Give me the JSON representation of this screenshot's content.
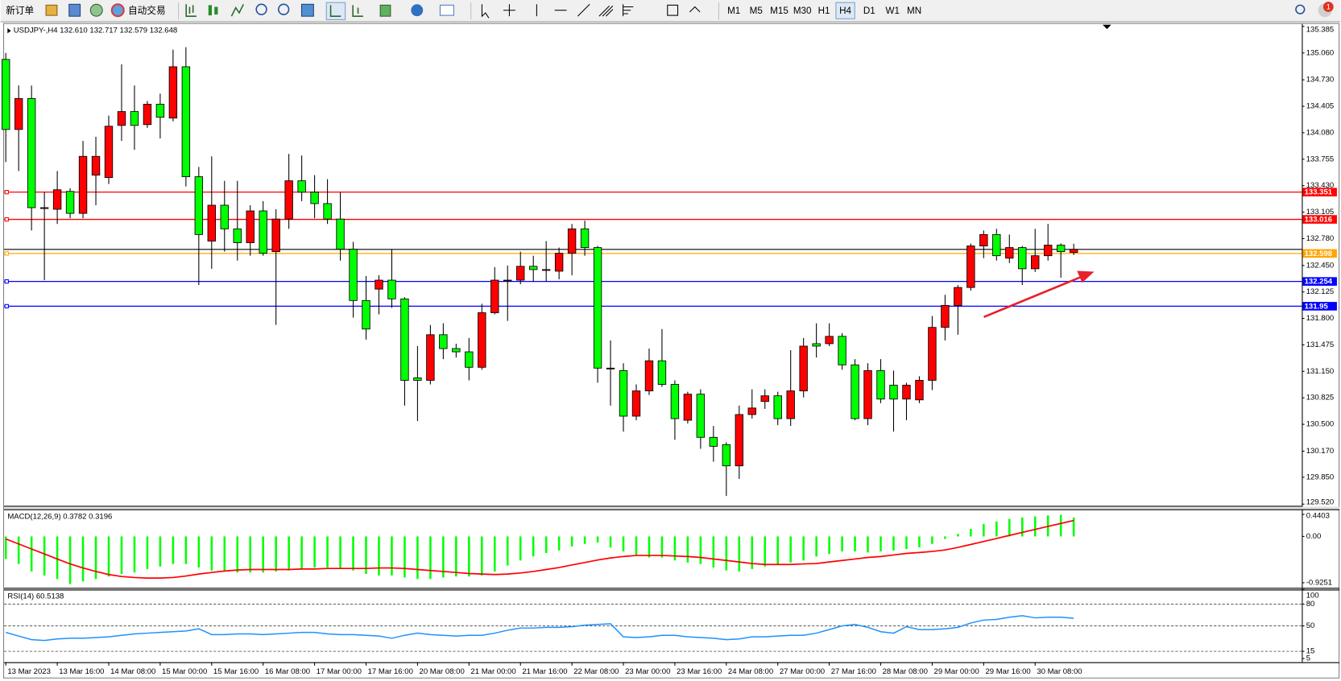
{
  "toolbar": {
    "new_order": "新订单",
    "auto_trade": "自动交易",
    "timeframes": [
      "M1",
      "M5",
      "M15",
      "M30",
      "H1",
      "H4",
      "D1",
      "W1",
      "MN"
    ],
    "notifications": "1"
  },
  "chart_data": [
    {
      "type": "candlestick",
      "title": "USDJPY-,H4  132.610 132.717 132.579 132.648",
      "up_color": "#ff0000",
      "down_color": "#00ff00",
      "categories": [
        "13 Mar 2023",
        null,
        null,
        null,
        "13 Mar 16:00",
        null,
        null,
        null,
        "14 Mar 08:00",
        null,
        null,
        null,
        "15 Mar 00:00",
        null,
        null,
        null,
        "15 Mar 16:00",
        null,
        null,
        null,
        "16 Mar 08:00",
        null,
        null,
        null,
        "17 Mar 00:00",
        null,
        null,
        null,
        "17 Mar 16:00",
        null,
        null,
        null,
        "20 Mar 08:00",
        null,
        null,
        null,
        "21 Mar 00:00",
        null,
        null,
        null,
        "21 Mar 16:00",
        null,
        null,
        null,
        "22 Mar 08:00",
        null,
        null,
        null,
        "23 Mar 00:00",
        null,
        null,
        null,
        "23 Mar 16:00",
        null,
        null,
        null,
        "24 Mar 08:00",
        null,
        null,
        null,
        "27 Mar 00:00",
        null,
        null,
        null,
        "27 Mar 16:00",
        null,
        null,
        null,
        "28 Mar 08:00",
        null,
        null,
        null,
        "29 Mar 00:00",
        null,
        null,
        null,
        "29 Mar 16:00",
        null,
        null,
        null,
        "30 Mar 08:00",
        null,
        null,
        null
      ],
      "ohlc": [
        [
          134.98,
          135.06,
          133.72,
          134.12
        ],
        [
          134.12,
          134.66,
          133.61,
          134.5
        ],
        [
          134.5,
          134.66,
          132.88,
          133.16
        ],
        [
          133.16,
          133.35,
          132.27,
          133.16
        ],
        [
          133.14,
          133.61,
          132.96,
          133.38
        ],
        [
          133.36,
          133.4,
          133.03,
          133.09
        ],
        [
          133.09,
          133.98,
          133.03,
          133.79
        ],
        [
          133.56,
          134.03,
          133.19,
          133.79
        ],
        [
          133.53,
          134.29,
          133.45,
          134.16
        ],
        [
          134.17,
          134.92,
          133.98,
          134.34
        ],
        [
          134.34,
          134.66,
          133.87,
          134.17
        ],
        [
          134.18,
          134.47,
          134.14,
          134.43
        ],
        [
          134.43,
          134.56,
          134.01,
          134.27
        ],
        [
          134.26,
          135.1,
          134.22,
          134.89
        ],
        [
          134.89,
          135.13,
          133.42,
          133.54
        ],
        [
          133.54,
          133.66,
          132.21,
          132.83
        ],
        [
          132.75,
          133.79,
          132.41,
          133.19
        ],
        [
          133.19,
          133.49,
          132.62,
          132.9
        ],
        [
          132.9,
          133.49,
          132.51,
          132.73
        ],
        [
          132.73,
          133.19,
          132.57,
          133.12
        ],
        [
          133.12,
          133.24,
          132.57,
          132.6
        ],
        [
          132.62,
          133.14,
          131.72,
          133.02
        ],
        [
          133.02,
          133.82,
          132.9,
          133.49
        ],
        [
          133.49,
          133.8,
          133.24,
          133.35
        ],
        [
          133.35,
          133.56,
          133.03,
          133.21
        ],
        [
          133.21,
          133.51,
          132.96,
          133.02
        ],
        [
          133.02,
          133.35,
          132.51,
          132.65
        ],
        [
          132.65,
          132.74,
          131.81,
          132.02
        ],
        [
          132.02,
          132.32,
          131.54,
          131.67
        ],
        [
          132.16,
          132.33,
          131.85,
          132.27
        ],
        [
          132.27,
          132.65,
          131.93,
          132.04
        ],
        [
          132.04,
          132.06,
          130.73,
          131.04
        ],
        [
          131.07,
          131.46,
          130.54,
          131.04
        ],
        [
          131.04,
          131.72,
          130.99,
          131.6
        ],
        [
          131.6,
          131.74,
          131.3,
          131.43
        ],
        [
          131.43,
          131.49,
          131.32,
          131.39
        ],
        [
          131.39,
          131.56,
          131.04,
          131.2
        ],
        [
          131.2,
          131.98,
          131.17,
          131.87
        ],
        [
          131.87,
          132.43,
          131.85,
          132.27
        ],
        [
          132.27,
          132.45,
          131.77,
          132.27
        ],
        [
          132.27,
          132.62,
          132.22,
          132.44
        ],
        [
          132.44,
          132.57,
          132.25,
          132.4
        ],
        [
          132.4,
          132.75,
          132.25,
          132.4
        ],
        [
          132.38,
          132.67,
          132.28,
          132.6
        ],
        [
          132.6,
          132.96,
          132.33,
          132.9
        ],
        [
          132.9,
          133.0,
          132.57,
          132.67
        ],
        [
          132.67,
          132.69,
          131.01,
          131.19
        ],
        [
          131.19,
          131.53,
          130.73,
          131.19
        ],
        [
          131.16,
          131.25,
          130.41,
          130.6
        ],
        [
          130.6,
          130.99,
          130.55,
          130.91
        ],
        [
          130.91,
          131.43,
          130.86,
          131.28
        ],
        [
          131.28,
          131.67,
          130.96,
          130.99
        ],
        [
          130.99,
          131.04,
          130.31,
          130.57
        ],
        [
          130.55,
          130.9,
          130.51,
          130.87
        ],
        [
          130.87,
          130.93,
          130.2,
          130.34
        ],
        [
          130.34,
          130.48,
          130.04,
          130.23
        ],
        [
          130.25,
          130.28,
          129.62,
          129.99
        ],
        [
          129.99,
          130.73,
          129.83,
          130.62
        ],
        [
          130.62,
          130.93,
          130.57,
          130.7
        ],
        [
          130.78,
          130.93,
          130.69,
          130.85
        ],
        [
          130.85,
          130.9,
          130.49,
          130.57
        ],
        [
          130.57,
          131.41,
          130.48,
          130.91
        ],
        [
          130.91,
          131.56,
          130.83,
          131.46
        ],
        [
          131.49,
          131.74,
          131.32,
          131.46
        ],
        [
          131.49,
          131.74,
          131.46,
          131.58
        ],
        [
          131.58,
          131.62,
          131.17,
          131.23
        ],
        [
          131.23,
          131.3,
          130.55,
          130.57
        ],
        [
          130.57,
          131.25,
          130.49,
          131.16
        ],
        [
          131.16,
          131.3,
          130.76,
          130.81
        ],
        [
          130.98,
          131.16,
          130.41,
          130.81
        ],
        [
          130.81,
          131.01,
          130.55,
          130.98
        ],
        [
          130.8,
          131.09,
          130.76,
          131.04
        ],
        [
          131.04,
          131.83,
          130.92,
          131.69
        ],
        [
          131.69,
          132.09,
          131.53,
          131.96
        ],
        [
          131.96,
          132.21,
          131.6,
          132.18
        ],
        [
          132.18,
          132.72,
          132.14,
          132.69
        ],
        [
          132.69,
          132.88,
          132.54,
          132.83
        ],
        [
          132.83,
          132.9,
          132.51,
          132.57
        ],
        [
          132.54,
          132.83,
          132.48,
          132.67
        ],
        [
          132.67,
          132.69,
          132.21,
          132.41
        ],
        [
          132.41,
          132.9,
          132.37,
          132.57
        ],
        [
          132.57,
          132.96,
          132.51,
          132.7
        ],
        [
          132.7,
          132.72,
          132.3,
          132.62
        ],
        [
          132.61,
          132.717,
          132.579,
          132.648
        ]
      ],
      "ylim": [
        129.499,
        135.416
      ],
      "yticks": [
        135.385,
        {
          "value": 135.06,
          "label": "135.060"
        },
        {
          "value": 134.73,
          "label": "134.730"
        },
        134.405,
        {
          "value": 134.08,
          "label": "134.080"
        },
        133.755,
        {
          "value": 133.43,
          "label": "133.430"
        },
        133.105,
        {
          "value": 132.78,
          "label": "132.780"
        },
        {
          "value": 132.45,
          "label": "132.450"
        },
        132.125,
        {
          "value": 131.8,
          "label": "131.800"
        },
        131.475,
        {
          "value": 131.15,
          "label": "131.150"
        },
        130.825,
        {
          "value": 130.5,
          "label": "130.500"
        },
        {
          "value": 130.17,
          "label": "130.170"
        },
        {
          "value": 129.85,
          "label": "129.850"
        },
        {
          "value": 129.52,
          "label": "129.520"
        }
      ],
      "levels": [
        {
          "value": 133.351,
          "color": "#ff0000"
        },
        {
          "value": 133.016,
          "color": "#ff0000"
        },
        {
          "value": 132.598,
          "color": "#ffa500"
        },
        {
          "value": 132.254,
          "color": "#0000ff"
        },
        {
          "value": 131.95,
          "color": "#0000ff"
        }
      ]
    },
    {
      "type": "macd",
      "title": "MACD(12,26,9) 0.3782 0.3196",
      "histogram": {
        "color": "#00ff00",
        "values": [
          -0.45,
          -0.55,
          -0.7,
          -0.78,
          -0.85,
          -0.95,
          -0.9,
          -0.85,
          -0.8,
          -0.75,
          -0.72,
          -0.65,
          -0.6,
          -0.55,
          -0.55,
          -0.62,
          -0.68,
          -0.7,
          -0.72,
          -0.72,
          -0.72,
          -0.7,
          -0.68,
          -0.65,
          -0.62,
          -0.62,
          -0.65,
          -0.68,
          -0.75,
          -0.78,
          -0.78,
          -0.82,
          -0.85,
          -0.85,
          -0.82,
          -0.8,
          -0.8,
          -0.78,
          -0.7,
          -0.58,
          -0.48,
          -0.4,
          -0.33,
          -0.28,
          -0.2,
          -0.15,
          -0.12,
          -0.22,
          -0.3,
          -0.38,
          -0.42,
          -0.42,
          -0.48,
          -0.52,
          -0.55,
          -0.62,
          -0.68,
          -0.7,
          -0.65,
          -0.6,
          -0.55,
          -0.52,
          -0.48,
          -0.4,
          -0.35,
          -0.3,
          -0.3,
          -0.32,
          -0.3,
          -0.28,
          -0.25,
          -0.22,
          -0.15,
          -0.05,
          0.05,
          0.15,
          0.25,
          0.3,
          0.35,
          0.38,
          0.4,
          0.42,
          0.43,
          0.3782
        ]
      },
      "signal": {
        "color": "#ff0000",
        "values": [
          -0.05,
          -0.15,
          -0.25,
          -0.35,
          -0.45,
          -0.55,
          -0.63,
          -0.7,
          -0.76,
          -0.8,
          -0.82,
          -0.83,
          -0.83,
          -0.82,
          -0.79,
          -0.75,
          -0.72,
          -0.69,
          -0.67,
          -0.66,
          -0.66,
          -0.66,
          -0.66,
          -0.65,
          -0.65,
          -0.64,
          -0.64,
          -0.64,
          -0.64,
          -0.63,
          -0.63,
          -0.64,
          -0.66,
          -0.68,
          -0.7,
          -0.72,
          -0.74,
          -0.75,
          -0.76,
          -0.75,
          -0.73,
          -0.7,
          -0.66,
          -0.62,
          -0.57,
          -0.52,
          -0.47,
          -0.43,
          -0.4,
          -0.38,
          -0.38,
          -0.38,
          -0.39,
          -0.4,
          -0.42,
          -0.45,
          -0.48,
          -0.51,
          -0.54,
          -0.56,
          -0.56,
          -0.56,
          -0.55,
          -0.54,
          -0.51,
          -0.48,
          -0.45,
          -0.42,
          -0.4,
          -0.37,
          -0.34,
          -0.32,
          -0.3,
          -0.27,
          -0.22,
          -0.16,
          -0.1,
          -0.04,
          0.02,
          0.08,
          0.14,
          0.2,
          0.26,
          0.3196
        ]
      },
      "ylim": [
        -1.027,
        0.526
      ],
      "yticks": [
        0.4403,
        {
          "value": 0,
          "label": "0.00"
        },
        -0.9251
      ]
    },
    {
      "type": "line",
      "title": "RSI(14) 60.5138",
      "color": "#1e90ff",
      "values": [
        41,
        36,
        31,
        30,
        32,
        33,
        33,
        34,
        35,
        37,
        39,
        40,
        41,
        42,
        43,
        46,
        38,
        38,
        39,
        39,
        38,
        39,
        40,
        41,
        41,
        39,
        38,
        38,
        37,
        36,
        33,
        37,
        40,
        38,
        37,
        36,
        37,
        37,
        40,
        44,
        47,
        47,
        48,
        48,
        49,
        51,
        52,
        53,
        35,
        34,
        35,
        37,
        37,
        35,
        34,
        33,
        31,
        32,
        35,
        35,
        36,
        37,
        37,
        40,
        45,
        50,
        52,
        48,
        42,
        40,
        49,
        45,
        45,
        46,
        48,
        54,
        58,
        59,
        62,
        64,
        61,
        62,
        62,
        60.5138
      ],
      "ylim": [
        0,
        100
      ],
      "yticks": [
        100,
        80,
        50,
        15,
        5
      ],
      "levels": [
        80,
        50,
        15
      ]
    }
  ]
}
